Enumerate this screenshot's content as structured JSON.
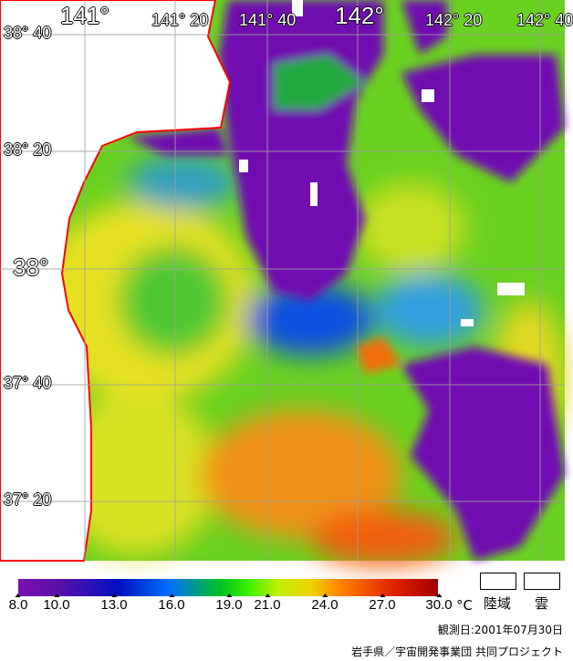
{
  "map": {
    "type": "sea-surface-temperature",
    "colors": {
      "land": "#ffffff",
      "cloud": "#ffffff",
      "coastline": "#ff0000",
      "grid": "#a0a0a0"
    }
  },
  "longitude_labels": [
    "141°",
    "141° 20",
    "141° 40",
    "142°",
    "142° 20",
    "142° 40"
  ],
  "latitude_labels": [
    "38° 40",
    "38° 20",
    "38°",
    "37° 40",
    "37° 20"
  ],
  "legend": {
    "ticks": [
      "8.0",
      "10.0",
      "13.0",
      "16.0",
      "19.0",
      "21.0",
      "24.0",
      "27.0",
      "30.0"
    ],
    "unit": "°C",
    "land_label": "陸域",
    "cloud_label": "雲"
  },
  "footer": {
    "date": "観測日:2001年07月30日",
    "credit": "岩手県／宇宙開発事業団 共同プロジェクト"
  }
}
